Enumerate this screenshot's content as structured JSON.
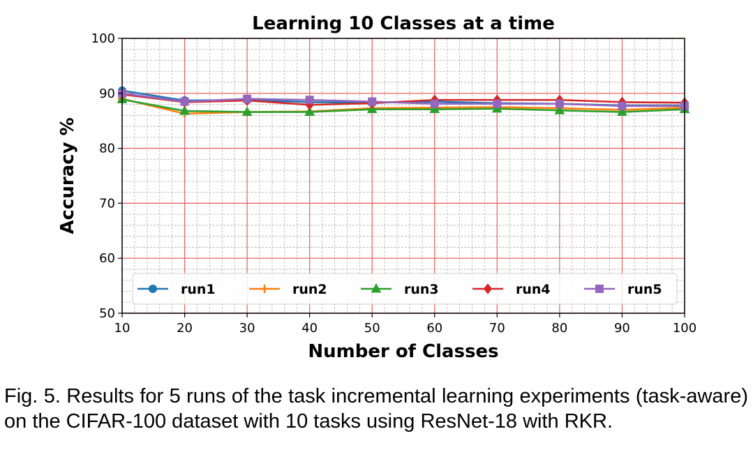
{
  "caption": "Fig. 5. Results for 5 runs of the task incremental learning experiments (task-aware) on the CIFAR-100 dataset with 10 tasks using ResNet-18 with RKR.",
  "chart_data": {
    "type": "line",
    "title": "Learning 10 Classes at a time",
    "xlabel": "Number of Classes",
    "ylabel": "Accuracy %",
    "xlim": [
      10,
      100
    ],
    "ylim": [
      50,
      100
    ],
    "x_ticks": [
      10,
      20,
      30,
      40,
      50,
      60,
      70,
      80,
      90,
      100
    ],
    "y_ticks": [
      50,
      60,
      70,
      80,
      90,
      100
    ],
    "grid": true,
    "minor_grid": true,
    "legend_position": "bottom",
    "x": [
      10,
      20,
      30,
      40,
      50,
      60,
      70,
      80,
      90,
      100
    ],
    "series": [
      {
        "name": "run1",
        "color": "#1f77b4",
        "marker": "circle",
        "values": [
          90.5,
          88.7,
          88.8,
          88.4,
          88.3,
          88.5,
          88.2,
          88.1,
          87.8,
          87.8
        ]
      },
      {
        "name": "run2",
        "color": "#ff7f0e",
        "marker": "plus",
        "values": [
          89.0,
          86.3,
          86.6,
          86.7,
          87.3,
          87.4,
          87.5,
          87.3,
          87.0,
          87.4
        ]
      },
      {
        "name": "run3",
        "color": "#2ca02c",
        "marker": "triangle",
        "values": [
          88.9,
          86.8,
          86.6,
          86.6,
          87.1,
          87.1,
          87.2,
          86.9,
          86.6,
          87.1
        ]
      },
      {
        "name": "run4",
        "color": "#d62728",
        "marker": "diamond",
        "values": [
          89.8,
          88.4,
          88.7,
          87.9,
          88.2,
          88.8,
          88.8,
          88.8,
          88.4,
          88.3
        ]
      },
      {
        "name": "run5",
        "color": "#9467bd",
        "marker": "square",
        "values": [
          90.0,
          88.5,
          89.0,
          88.8,
          88.5,
          88.1,
          88.1,
          88.1,
          87.7,
          87.7
        ]
      }
    ]
  }
}
